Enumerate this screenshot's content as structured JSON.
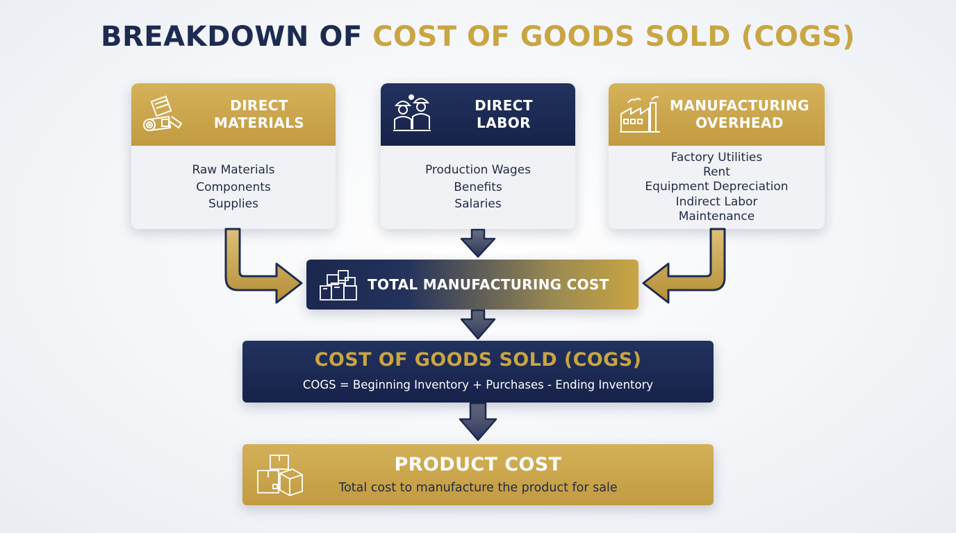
{
  "title": {
    "part1": "BREAKDOWN OF",
    "part2": "COST OF GOODS SOLD (COGS)"
  },
  "components": [
    {
      "id": "direct-materials",
      "title_line1": "DIRECT",
      "title_line2": "MATERIALS",
      "icon": "materials-icon",
      "items": [
        "Raw Materials",
        "Components",
        "Supplies"
      ]
    },
    {
      "id": "direct-labor",
      "title_line1": "DIRECT",
      "title_line2": "LABOR",
      "icon": "workers-icon",
      "items": [
        "Production Wages",
        "Benefits",
        "Salaries"
      ]
    },
    {
      "id": "manufacturing-overhead",
      "title_line1": "MANUFACTURING",
      "title_line2": "OVERHEAD",
      "icon": "factory-icon",
      "items": [
        "Factory Utilities",
        "Rent",
        "Equipment Depreciation",
        "Indirect Labor",
        "Maintenance"
      ]
    }
  ],
  "total_manufacturing_cost": {
    "label": "TOTAL MANUFACTURING COST",
    "icon": "boxes-icon"
  },
  "cogs": {
    "title": "COST OF GOODS SOLD (COGS)",
    "formula": "COGS = Beginning Inventory + Purchases - Ending Inventory"
  },
  "product_cost": {
    "title": "PRODUCT COST",
    "subtitle": "Total cost to manufacture the product for sale",
    "icon": "packages-icon"
  },
  "colors": {
    "navy": "#1d2b52",
    "gold": "#c9a543",
    "card_bg": "#f0f2f5",
    "text_dark": "#1f2a44"
  }
}
